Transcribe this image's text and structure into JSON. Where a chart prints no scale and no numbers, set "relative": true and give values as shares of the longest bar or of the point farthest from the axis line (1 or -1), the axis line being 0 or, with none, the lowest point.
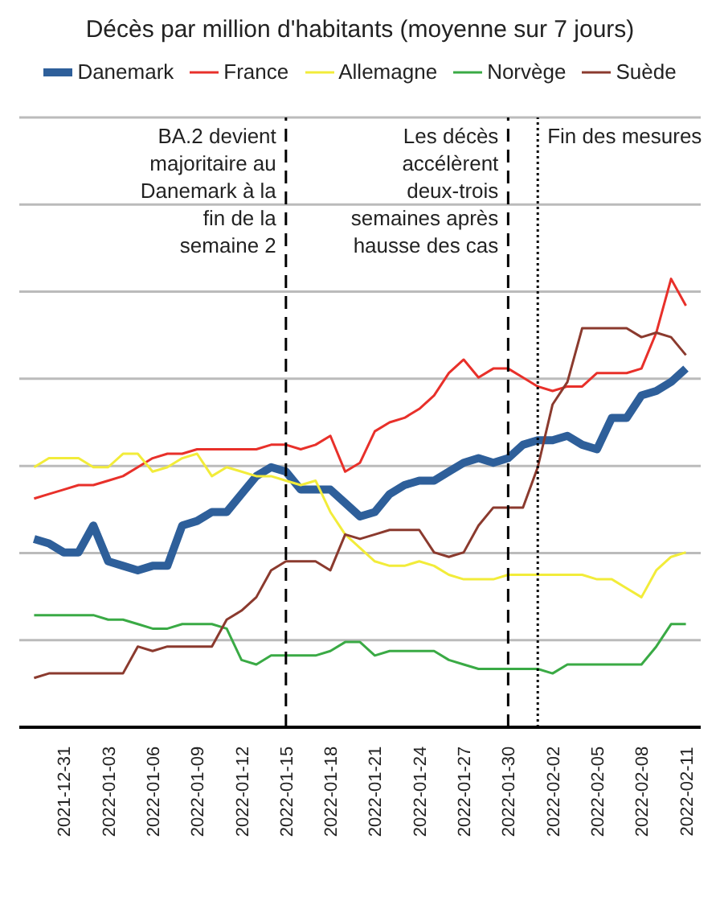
{
  "chart_data": {
    "type": "line",
    "title": "Décès par million d'habitants (moyenne sur 7 jours)",
    "relative": true,
    "grid": "y",
    "legend": "top",
    "marker": "none",
    "x": [
      "2021-12-29",
      "2021-12-30",
      "2021-12-31",
      "2022-01-01",
      "2022-01-02",
      "2022-01-03",
      "2022-01-04",
      "2022-01-05",
      "2022-01-06",
      "2022-01-07",
      "2022-01-08",
      "2022-01-09",
      "2022-01-10",
      "2022-01-11",
      "2022-01-12",
      "2022-01-13",
      "2022-01-14",
      "2022-01-15",
      "2022-01-16",
      "2022-01-17",
      "2022-01-18",
      "2022-01-19",
      "2022-01-20",
      "2022-01-21",
      "2022-01-22",
      "2022-01-23",
      "2022-01-24",
      "2022-01-25",
      "2022-01-26",
      "2022-01-27",
      "2022-01-28",
      "2022-01-29",
      "2022-01-30",
      "2022-01-31",
      "2022-02-01",
      "2022-02-02",
      "2022-02-03",
      "2022-02-04",
      "2022-02-05",
      "2022-02-06",
      "2022-02-07",
      "2022-02-08",
      "2022-02-09",
      "2022-02-10",
      "2022-02-11"
    ],
    "xlim": [
      "2021-12-28",
      "2022-02-12"
    ],
    "xticks": [
      "2021-12-31",
      "2022-01-03",
      "2022-01-06",
      "2022-01-09",
      "2022-01-12",
      "2022-01-15",
      "2022-01-18",
      "2022-01-21",
      "2022-01-24",
      "2022-01-27",
      "2022-01-30",
      "2022-02-02",
      "2022-02-05",
      "2022-02-08",
      "2022-02-11"
    ],
    "series": [
      {
        "name": "Danemark",
        "color": "#2e5f9a",
        "values": [
          0.42,
          0.41,
          0.39,
          0.39,
          0.45,
          0.37,
          0.36,
          0.35,
          0.36,
          0.36,
          0.45,
          0.46,
          0.48,
          0.48,
          0.52,
          0.56,
          0.58,
          0.57,
          0.53,
          0.53,
          0.53,
          0.5,
          0.47,
          0.48,
          0.52,
          0.54,
          0.55,
          0.55,
          0.57,
          0.59,
          0.6,
          0.59,
          0.6,
          0.63,
          0.64,
          0.64,
          0.65,
          0.63,
          0.62,
          0.69,
          0.69,
          0.74,
          0.75,
          0.77,
          0.8
        ]
      },
      {
        "name": "France",
        "color": "#e8302a",
        "values": [
          0.51,
          0.52,
          0.53,
          0.54,
          0.54,
          0.55,
          0.56,
          0.58,
          0.6,
          0.61,
          0.61,
          0.62,
          0.62,
          0.62,
          0.62,
          0.62,
          0.63,
          0.63,
          0.62,
          0.63,
          0.65,
          0.57,
          0.59,
          0.66,
          0.68,
          0.69,
          0.71,
          0.74,
          0.79,
          0.82,
          0.78,
          0.8,
          0.8,
          0.78,
          0.76,
          0.75,
          0.76,
          0.76,
          0.79,
          0.79,
          0.79,
          0.8,
          0.88,
          1,
          0.94
        ]
      },
      {
        "name": "Allemagne",
        "color": "#f2ec3a",
        "values": [
          0.58,
          0.6,
          0.6,
          0.6,
          0.58,
          0.58,
          0.61,
          0.61,
          0.57,
          0.58,
          0.6,
          0.61,
          0.56,
          0.58,
          0.57,
          0.56,
          0.56,
          0.55,
          0.54,
          0.55,
          0.48,
          0.43,
          0.4,
          0.37,
          0.36,
          0.36,
          0.37,
          0.36,
          0.34,
          0.33,
          0.33,
          0.33,
          0.34,
          0.34,
          0.34,
          0.34,
          0.34,
          0.34,
          0.33,
          0.33,
          0.31,
          0.29,
          0.35,
          0.38,
          0.39
        ]
      },
      {
        "name": "Norvège",
        "color": "#3aaa45",
        "values": [
          0.25,
          0.25,
          0.25,
          0.25,
          0.25,
          0.24,
          0.24,
          0.23,
          0.22,
          0.22,
          0.23,
          0.23,
          0.23,
          0.22,
          0.15,
          0.14,
          0.16,
          0.16,
          0.16,
          0.16,
          0.17,
          0.19,
          0.19,
          0.16,
          0.17,
          0.17,
          0.17,
          0.17,
          0.15,
          0.14,
          0.13,
          0.13,
          0.13,
          0.13,
          0.13,
          0.12,
          0.14,
          0.14,
          0.14,
          0.14,
          0.14,
          0.14,
          0.18,
          0.23,
          0.23
        ]
      },
      {
        "name": "Suède",
        "color": "#8b3a2e",
        "values": [
          0.11,
          0.12,
          0.12,
          0.12,
          0.12,
          0.12,
          0.12,
          0.18,
          0.17,
          0.18,
          0.18,
          0.18,
          0.18,
          0.24,
          0.26,
          0.29,
          0.35,
          0.37,
          0.37,
          0.37,
          0.35,
          0.43,
          0.42,
          0.43,
          0.44,
          0.44,
          0.44,
          0.39,
          0.38,
          0.39,
          0.45,
          0.49,
          0.49,
          0.49,
          0.58,
          0.72,
          0.77,
          0.89,
          0.89,
          0.89,
          0.89,
          0.87,
          0.88,
          0.87,
          0.83
        ]
      }
    ],
    "ref_lines": [
      {
        "axis": "x",
        "value": "2022-01-15",
        "label": "BA.2 devient majoritaire au Danemark à la fin de la semaine 2",
        "color": "#000000",
        "line_style": "dashed"
      },
      {
        "axis": "x",
        "value": "2022-01-30",
        "label": "Les décès accélèrent deux-trois semaines après hausse des cas",
        "color": "#000000",
        "line_style": "dashed"
      },
      {
        "axis": "x",
        "value": "2022-02-01",
        "label": "Fin des mesures",
        "color": "#000000",
        "line_style": "dotted"
      }
    ]
  }
}
